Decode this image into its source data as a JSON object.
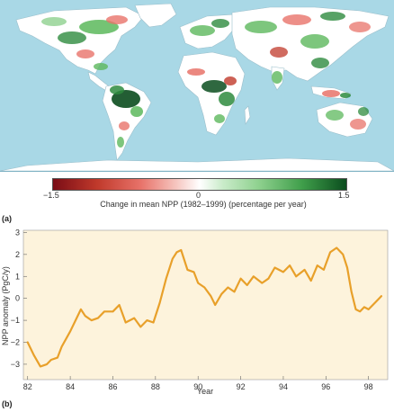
{
  "panels": {
    "a_label": "(a)",
    "b_label": "(b)"
  },
  "map": {
    "colorbar_ticks": [
      "−1.5",
      "0",
      "1.5"
    ],
    "colorbar_label": "Change in mean NPP (1982–1999) (percentage per year)",
    "colors": {
      "ocean": "#a9d8e6",
      "land_neutral": "#ffffff",
      "strong_negative": "#8b0f1a",
      "negative": "#e8736a",
      "positive": "#5cb85c",
      "strong_positive": "#0b4d1e"
    }
  },
  "chart_data": {
    "type": "line",
    "title": "",
    "xlabel": "Year",
    "ylabel": "NPP anomaly (PgC/y)",
    "xlim": [
      81.8,
      98.9
    ],
    "ylim": [
      -3.7,
      3.1
    ],
    "x_ticks": [
      "82",
      "84",
      "86",
      "88",
      "90",
      "92",
      "94",
      "96",
      "98"
    ],
    "y_ticks": [
      "3",
      "2",
      "1",
      "0",
      "−1",
      "−2",
      "−3"
    ],
    "grid": false,
    "line_color": "#e8a02a",
    "background": "#fdf3dc",
    "series": [
      {
        "x": [
          82.0,
          82.3,
          82.6,
          82.9,
          83.1,
          83.4,
          83.6,
          84.0,
          84.3,
          84.5,
          84.7,
          85.0,
          85.3,
          85.6,
          86.0,
          86.3,
          86.6,
          87.0,
          87.3,
          87.6,
          87.9,
          88.2,
          88.5,
          88.8,
          89.0,
          89.2,
          89.5,
          89.8,
          90.0,
          90.3,
          90.6,
          90.8,
          91.1,
          91.4,
          91.7,
          92.0,
          92.3,
          92.6,
          93.0,
          93.3,
          93.6,
          94.0,
          94.3,
          94.6,
          95.0,
          95.3,
          95.6,
          95.9,
          96.2,
          96.5,
          96.8,
          97.0,
          97.2,
          97.4,
          97.6,
          97.8,
          98.0,
          98.3,
          98.6
        ],
        "y": [
          -2.0,
          -2.6,
          -3.1,
          -3.0,
          -2.8,
          -2.7,
          -2.2,
          -1.5,
          -0.9,
          -0.5,
          -0.8,
          -1.0,
          -0.9,
          -0.6,
          -0.6,
          -0.3,
          -1.1,
          -0.9,
          -1.3,
          -1.0,
          -1.1,
          -0.2,
          0.9,
          1.8,
          2.1,
          2.2,
          1.3,
          1.2,
          0.7,
          0.5,
          0.1,
          -0.3,
          0.2,
          0.5,
          0.3,
          0.9,
          0.6,
          1.0,
          0.7,
          0.9,
          1.4,
          1.2,
          1.5,
          1.0,
          1.3,
          0.8,
          1.5,
          1.3,
          2.1,
          2.3,
          2.0,
          1.4,
          0.3,
          -0.5,
          -0.6,
          -0.4,
          -0.5,
          -0.2,
          0.1
        ]
      }
    ]
  }
}
